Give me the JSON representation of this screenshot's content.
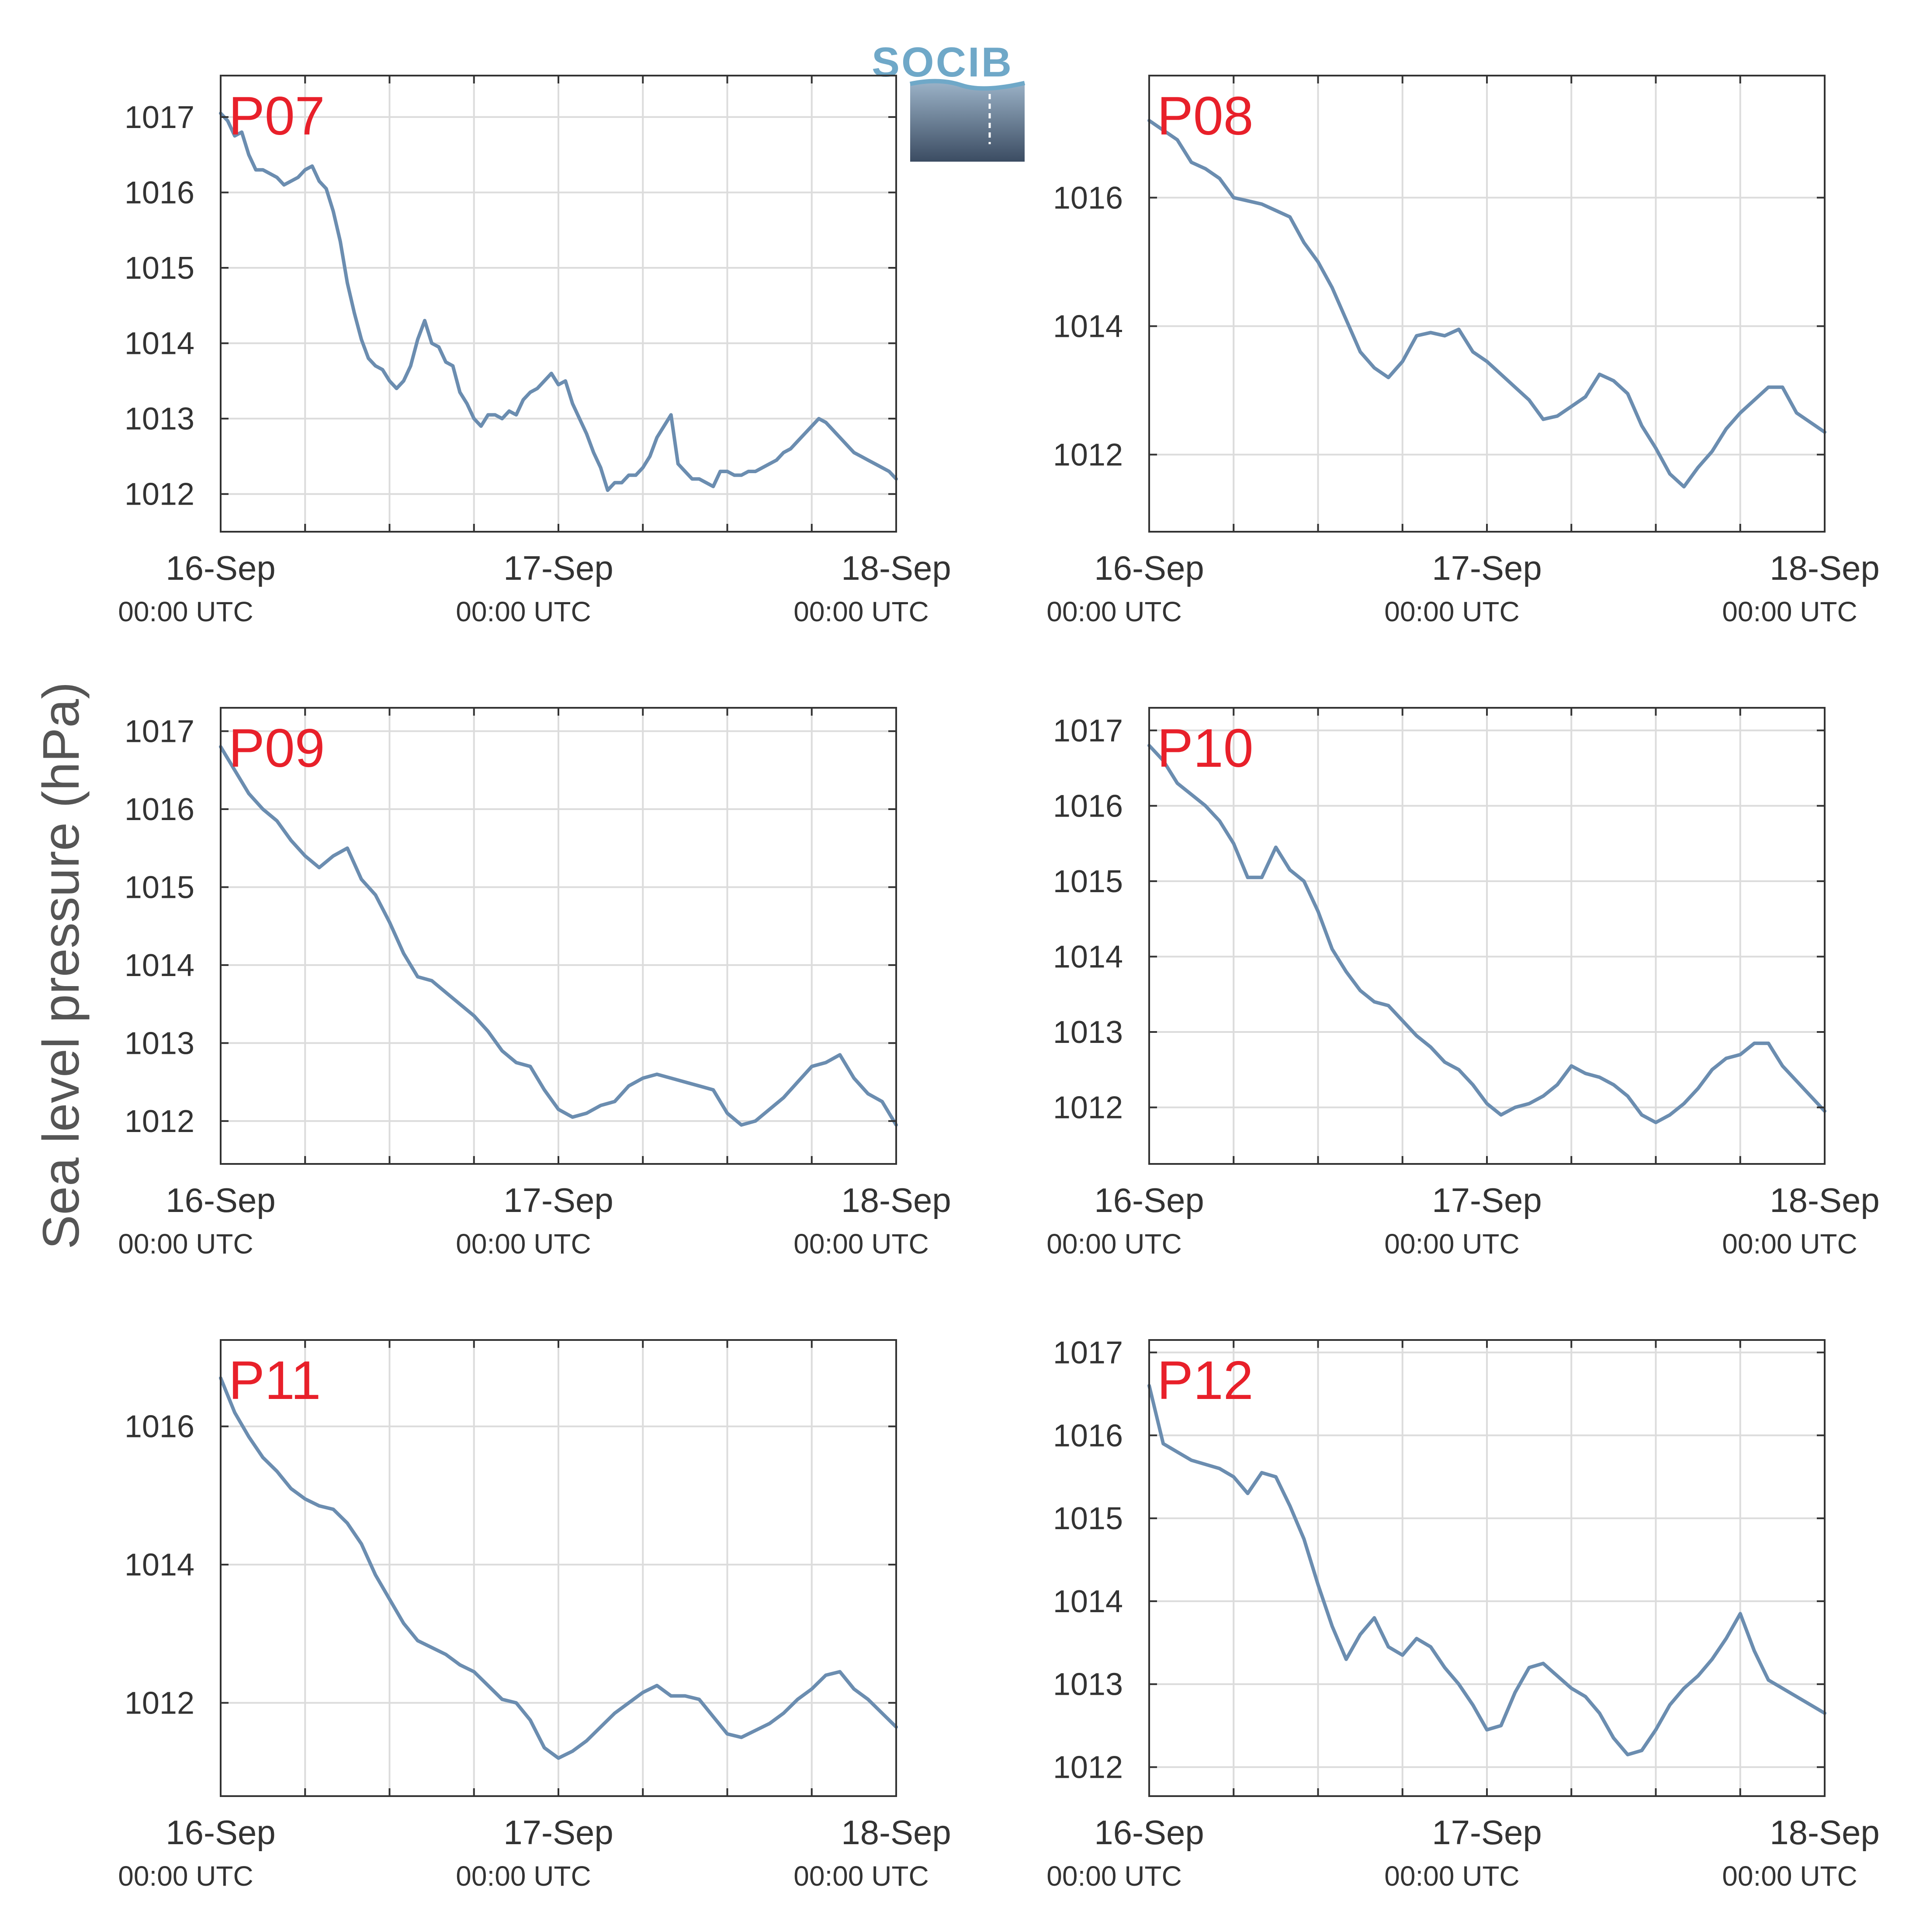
{
  "figure": {
    "ylabel": "Sea level pressure (hPa)",
    "logo": {
      "text": "SOCIB",
      "color_top": "#6fa8c8",
      "color_bottom": "#3b4c62"
    }
  },
  "style": {
    "line_color": "#6b8db0",
    "station_color": "#e8202a",
    "grid_color": "#dcdcdc",
    "axis_color": "#333333",
    "text_color": "#333333"
  },
  "x_ticks": [
    {
      "date": "16-Sep",
      "time": "00:00 UTC",
      "x": 0
    },
    {
      "date": "17-Sep",
      "time": "00:00 UTC",
      "x": 24
    },
    {
      "date": "18-Sep",
      "time": "00:00 UTC",
      "x": 48
    }
  ],
  "x_minor_hours": [
    6,
    12,
    18,
    30,
    36,
    42
  ],
  "chart_data": [
    {
      "type": "line",
      "station": "P07",
      "xlim": [
        0,
        48
      ],
      "ylim": [
        1011.5,
        1017.55
      ],
      "yticks": [
        1012,
        1013,
        1014,
        1015,
        1016,
        1017
      ],
      "x": [
        0,
        0.5,
        1,
        1.5,
        2,
        2.5,
        3,
        3.5,
        4,
        4.5,
        5,
        5.5,
        6,
        6.5,
        7,
        7.5,
        8,
        8.5,
        9,
        9.5,
        10,
        10.5,
        11,
        11.5,
        12,
        12.5,
        13,
        13.5,
        14,
        14.5,
        15,
        15.5,
        16,
        16.5,
        17,
        17.5,
        18,
        18.5,
        19,
        19.5,
        20,
        20.5,
        21,
        21.5,
        22,
        22.5,
        23,
        23.5,
        24,
        24.5,
        25,
        25.5,
        26,
        26.5,
        27,
        27.5,
        28,
        28.5,
        29,
        29.5,
        30,
        30.5,
        31,
        31.5,
        32,
        32.5,
        33,
        33.5,
        34,
        34.5,
        35,
        35.5,
        36,
        36.5,
        37,
        37.5,
        38,
        38.5,
        39,
        39.5,
        40,
        40.5,
        41,
        41.5,
        42,
        42.5,
        43,
        43.5,
        44,
        44.5,
        45,
        45.5,
        46,
        46.5,
        47,
        47.5,
        48
      ],
      "y": [
        1017.05,
        1016.95,
        1016.75,
        1016.8,
        1016.5,
        1016.3,
        1016.3,
        1016.25,
        1016.2,
        1016.1,
        1016.15,
        1016.2,
        1016.3,
        1016.35,
        1016.15,
        1016.05,
        1015.75,
        1015.35,
        1014.8,
        1014.4,
        1014.05,
        1013.8,
        1013.7,
        1013.65,
        1013.5,
        1013.4,
        1013.5,
        1013.7,
        1014.05,
        1014.3,
        1014.0,
        1013.95,
        1013.75,
        1013.7,
        1013.35,
        1013.2,
        1013.0,
        1012.9,
        1013.05,
        1013.05,
        1013.0,
        1013.1,
        1013.05,
        1013.25,
        1013.35,
        1013.4,
        1013.5,
        1013.6,
        1013.45,
        1013.5,
        1013.2,
        1013.0,
        1012.8,
        1012.55,
        1012.35,
        1012.05,
        1012.15,
        1012.15,
        1012.25,
        1012.25,
        1012.35,
        1012.5,
        1012.75,
        1012.9,
        1013.05,
        1012.4,
        1012.3,
        1012.2,
        1012.2,
        1012.15,
        1012.1,
        1012.3,
        1012.3,
        1012.25,
        1012.25,
        1012.3,
        1012.3,
        1012.35,
        1012.4,
        1012.45,
        1012.55,
        1012.6,
        1012.7,
        1012.8,
        1012.9,
        1013.0,
        1012.95,
        1012.85,
        1012.75,
        1012.65,
        1012.55,
        1012.5,
        1012.45,
        1012.4,
        1012.35,
        1012.3,
        1012.2
      ]
    },
    {
      "type": "line",
      "station": "P08",
      "xlim": [
        0,
        48
      ],
      "ylim": [
        1010.8,
        1017.9
      ],
      "yticks": [
        1012,
        1014,
        1016
      ],
      "x": [
        0,
        1,
        2,
        3,
        4,
        5,
        6,
        7,
        8,
        9,
        10,
        11,
        12,
        13,
        14,
        15,
        16,
        17,
        18,
        19,
        20,
        21,
        22,
        23,
        24,
        25,
        26,
        27,
        28,
        29,
        30,
        31,
        32,
        33,
        34,
        35,
        36,
        37,
        38,
        39,
        40,
        41,
        42,
        43,
        44,
        45,
        46,
        47,
        48
      ],
      "y": [
        1017.2,
        1017.05,
        1016.9,
        1016.55,
        1016.45,
        1016.3,
        1016.0,
        1015.95,
        1015.9,
        1015.8,
        1015.7,
        1015.3,
        1015.0,
        1014.6,
        1014.1,
        1013.6,
        1013.35,
        1013.2,
        1013.45,
        1013.85,
        1013.9,
        1013.85,
        1013.95,
        1013.6,
        1013.45,
        1013.25,
        1013.05,
        1012.85,
        1012.55,
        1012.6,
        1012.75,
        1012.9,
        1013.25,
        1013.15,
        1012.95,
        1012.45,
        1012.1,
        1011.7,
        1011.5,
        1011.8,
        1012.05,
        1012.4,
        1012.65,
        1012.85,
        1013.05,
        1013.05,
        1012.65,
        1012.5,
        1012.35
      ]
    },
    {
      "type": "line",
      "station": "P09",
      "xlim": [
        0,
        48
      ],
      "ylim": [
        1011.45,
        1017.3
      ],
      "yticks": [
        1012,
        1013,
        1014,
        1015,
        1016,
        1017
      ],
      "x": [
        0,
        1,
        2,
        3,
        4,
        5,
        6,
        7,
        8,
        9,
        10,
        11,
        12,
        13,
        14,
        15,
        16,
        17,
        18,
        19,
        20,
        21,
        22,
        23,
        24,
        25,
        26,
        27,
        28,
        29,
        30,
        31,
        32,
        33,
        34,
        35,
        36,
        37,
        38,
        39,
        40,
        41,
        42,
        43,
        44,
        45,
        46,
        47,
        48
      ],
      "y": [
        1016.8,
        1016.5,
        1016.2,
        1016.0,
        1015.85,
        1015.6,
        1015.4,
        1015.25,
        1015.4,
        1015.5,
        1015.1,
        1014.9,
        1014.55,
        1014.15,
        1013.85,
        1013.8,
        1013.65,
        1013.5,
        1013.35,
        1013.15,
        1012.9,
        1012.75,
        1012.7,
        1012.4,
        1012.15,
        1012.05,
        1012.1,
        1012.2,
        1012.25,
        1012.45,
        1012.55,
        1012.6,
        1012.55,
        1012.5,
        1012.45,
        1012.4,
        1012.1,
        1011.95,
        1012.0,
        1012.15,
        1012.3,
        1012.5,
        1012.7,
        1012.75,
        1012.85,
        1012.55,
        1012.35,
        1012.25,
        1011.95
      ]
    },
    {
      "type": "line",
      "station": "P10",
      "xlim": [
        0,
        48
      ],
      "ylim": [
        1011.25,
        1017.3
      ],
      "yticks": [
        1012,
        1013,
        1014,
        1015,
        1016,
        1017
      ],
      "x": [
        0,
        1,
        2,
        3,
        4,
        5,
        6,
        7,
        8,
        9,
        10,
        11,
        12,
        13,
        14,
        15,
        16,
        17,
        18,
        19,
        20,
        21,
        22,
        23,
        24,
        25,
        26,
        27,
        28,
        29,
        30,
        31,
        32,
        33,
        34,
        35,
        36,
        37,
        38,
        39,
        40,
        41,
        42,
        43,
        44,
        45,
        46,
        47,
        48
      ],
      "y": [
        1016.8,
        1016.6,
        1016.3,
        1016.15,
        1016.0,
        1015.8,
        1015.5,
        1015.05,
        1015.05,
        1015.45,
        1015.15,
        1015.0,
        1014.6,
        1014.1,
        1013.8,
        1013.55,
        1013.4,
        1013.35,
        1013.15,
        1012.95,
        1012.8,
        1012.6,
        1012.5,
        1012.3,
        1012.05,
        1011.9,
        1012.0,
        1012.05,
        1012.15,
        1012.3,
        1012.55,
        1012.45,
        1012.4,
        1012.3,
        1012.15,
        1011.9,
        1011.8,
        1011.9,
        1012.05,
        1012.25,
        1012.5,
        1012.65,
        1012.7,
        1012.85,
        1012.85,
        1012.55,
        1012.35,
        1012.15,
        1011.95
      ]
    },
    {
      "type": "line",
      "station": "P11",
      "xlim": [
        0,
        48
      ],
      "ylim": [
        1010.65,
        1017.25
      ],
      "yticks": [
        1012,
        1014,
        1016
      ],
      "x": [
        0,
        1,
        2,
        3,
        4,
        5,
        6,
        7,
        8,
        9,
        10,
        11,
        12,
        13,
        14,
        15,
        16,
        17,
        18,
        19,
        20,
        21,
        22,
        23,
        24,
        25,
        26,
        27,
        28,
        29,
        30,
        31,
        32,
        33,
        34,
        35,
        36,
        37,
        38,
        39,
        40,
        41,
        42,
        43,
        44,
        45,
        46,
        47,
        48
      ],
      "y": [
        1016.7,
        1016.2,
        1015.85,
        1015.55,
        1015.35,
        1015.1,
        1014.95,
        1014.85,
        1014.8,
        1014.6,
        1014.3,
        1013.85,
        1013.5,
        1013.15,
        1012.9,
        1012.8,
        1012.7,
        1012.55,
        1012.45,
        1012.25,
        1012.05,
        1012.0,
        1011.75,
        1011.35,
        1011.2,
        1011.3,
        1011.45,
        1011.65,
        1011.85,
        1012.0,
        1012.15,
        1012.25,
        1012.1,
        1012.1,
        1012.05,
        1011.8,
        1011.55,
        1011.5,
        1011.6,
        1011.7,
        1011.85,
        1012.05,
        1012.2,
        1012.4,
        1012.45,
        1012.2,
        1012.05,
        1011.85,
        1011.65
      ]
    },
    {
      "type": "line",
      "station": "P12",
      "xlim": [
        0,
        48
      ],
      "ylim": [
        1011.65,
        1017.15
      ],
      "yticks": [
        1012,
        1013,
        1014,
        1015,
        1016,
        1017
      ],
      "x": [
        0,
        1,
        2,
        3,
        4,
        5,
        6,
        7,
        8,
        9,
        10,
        11,
        12,
        13,
        14,
        15,
        16,
        17,
        18,
        19,
        20,
        21,
        22,
        23,
        24,
        25,
        26,
        27,
        28,
        29,
        30,
        31,
        32,
        33,
        34,
        35,
        36,
        37,
        38,
        39,
        40,
        41,
        42,
        43,
        44,
        45,
        46,
        47,
        48
      ],
      "y": [
        1016.6,
        1015.9,
        1015.8,
        1015.7,
        1015.65,
        1015.6,
        1015.5,
        1015.3,
        1015.55,
        1015.5,
        1015.15,
        1014.75,
        1014.2,
        1013.7,
        1013.3,
        1013.6,
        1013.8,
        1013.45,
        1013.35,
        1013.55,
        1013.45,
        1013.2,
        1013.0,
        1012.75,
        1012.45,
        1012.5,
        1012.9,
        1013.2,
        1013.25,
        1013.1,
        1012.95,
        1012.85,
        1012.65,
        1012.35,
        1012.15,
        1012.2,
        1012.45,
        1012.75,
        1012.95,
        1013.1,
        1013.3,
        1013.55,
        1013.85,
        1013.4,
        1013.05,
        1012.95,
        1012.85,
        1012.75,
        1012.65
      ]
    }
  ]
}
